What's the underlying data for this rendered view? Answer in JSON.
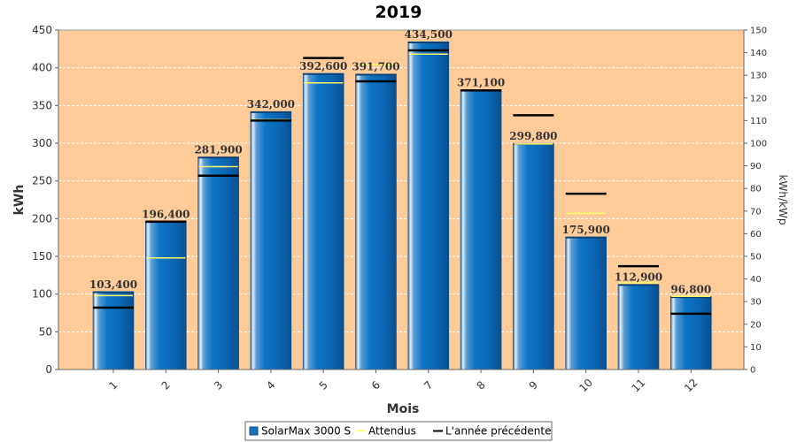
{
  "chart_data": {
    "type": "bar",
    "title": "2019",
    "xlabel": "Mois",
    "ylabel": "kWh",
    "y2label": "kWh/kWp",
    "ylim": [
      0,
      450
    ],
    "y2lim": [
      0,
      150
    ],
    "yticks": [
      "0",
      "50",
      "100",
      "150",
      "200",
      "250",
      "300",
      "350",
      "400",
      "450"
    ],
    "y2ticks": [
      "0",
      "10",
      "20",
      "30",
      "40",
      "50",
      "60",
      "70",
      "80",
      "90",
      "100",
      "110",
      "120",
      "130",
      "140",
      "150"
    ],
    "categories": [
      "1",
      "2",
      "3",
      "4",
      "5",
      "6",
      "7",
      "8",
      "9",
      "10",
      "11",
      "12"
    ],
    "series": [
      {
        "name": "SolarMax 3000 S",
        "kind": "bar",
        "color": "#1a6fb5",
        "values": [
          103.4,
          196.4,
          281.9,
          342.0,
          392.6,
          391.7,
          434.5,
          371.1,
          299.8,
          175.9,
          112.9,
          96.8
        ],
        "labels": [
          "103,400",
          "196,400",
          "281,900",
          "342,000",
          "392,600",
          "391,700",
          "434,500",
          "371,100",
          "299,800",
          "175,900",
          "112,900",
          "96,800"
        ]
      },
      {
        "name": "Attendus",
        "kind": "marker",
        "color": "#ffff66",
        "values": [
          98,
          148,
          269,
          331,
          380,
          404,
          418,
          370,
          299,
          207,
          115,
          97
        ]
      },
      {
        "name": "L'année précédente",
        "kind": "marker",
        "color": "#000000",
        "values": [
          82,
          196,
          257,
          330,
          413,
          382,
          423,
          370,
          337,
          233,
          137,
          74
        ]
      }
    ],
    "grid": true,
    "legend_position": "bottom-center",
    "colors": {
      "plot_background": "#ffcc99",
      "grid": "#ffffff",
      "bar": "#1a6fb5"
    }
  }
}
